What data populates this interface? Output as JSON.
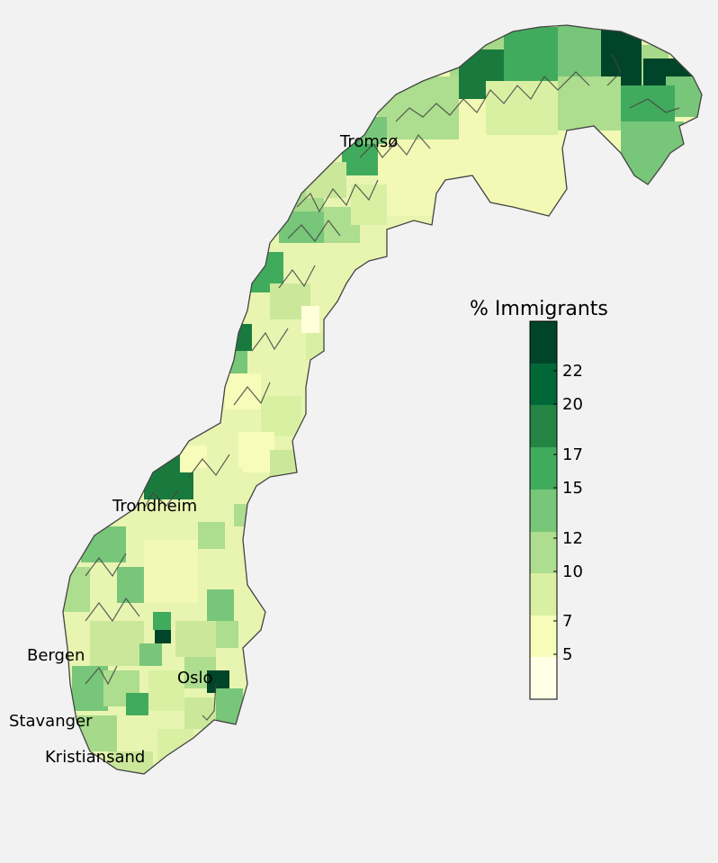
{
  "legend": {
    "title": "% Immigrants",
    "tick_labels": [
      "5",
      "7",
      "10",
      "12",
      "15",
      "17",
      "20",
      "22"
    ],
    "bins": [
      {
        "color": "#ffffe5"
      },
      {
        "color": "#f7fcb9"
      },
      {
        "color": "#d9f0a3"
      },
      {
        "color": "#addd8e"
      },
      {
        "color": "#78c679"
      },
      {
        "color": "#41ab5d"
      },
      {
        "color": "#238443"
      },
      {
        "color": "#006837"
      },
      {
        "color": "#004529"
      }
    ]
  },
  "cities": [
    {
      "name": "Tromsø"
    },
    {
      "name": "Trondheim"
    },
    {
      "name": "Bergen"
    },
    {
      "name": "Oslo"
    },
    {
      "name": "Stavanger"
    },
    {
      "name": "Kristiansand"
    }
  ],
  "colors": {
    "background": "#f2f2f2",
    "coastline": "#333333"
  }
}
